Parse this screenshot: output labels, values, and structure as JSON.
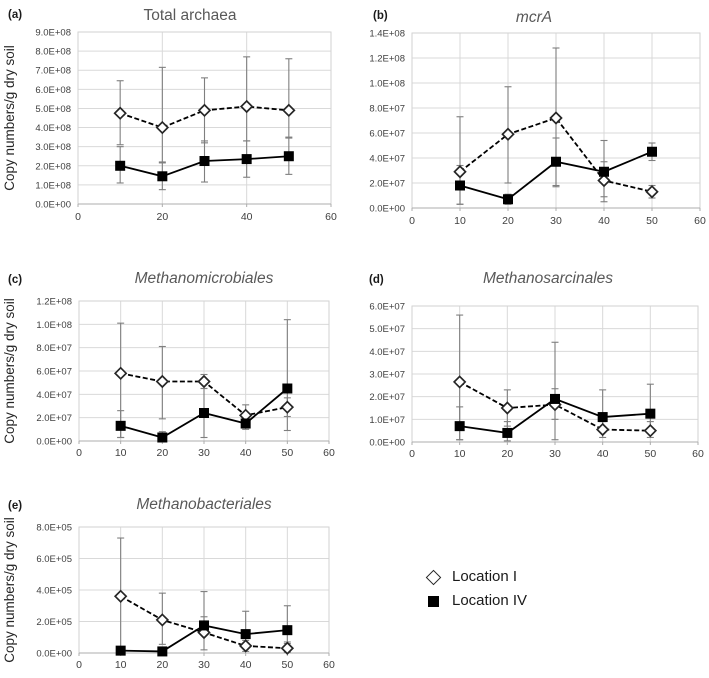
{
  "figure": {
    "y_axis_title": "Copy numbers/g dry soil",
    "legend": {
      "items": [
        {
          "label": "Location I",
          "marker": "diamond"
        },
        {
          "label": "Location IV",
          "marker": "square"
        }
      ]
    },
    "colors": {
      "grid": "#d9d9d9",
      "border": "#d2d2d2",
      "axis": "#acacac",
      "error": "#7f7f7f",
      "line": "#000000",
      "marker_stroke": "#262626",
      "marker_fill_open": "#ffffff",
      "marker_fill_solid": "#000000",
      "title": "#595959",
      "tick": "#404040",
      "panel_label": "#1a1a1a",
      "y_title": "#262626"
    }
  },
  "chart_data": [
    {
      "id": "a",
      "panel_label": "(a)",
      "title": "Total archaea",
      "title_italic": false,
      "type": "line",
      "show_y_axis_title": true,
      "xlim": [
        0,
        60
      ],
      "ylim": [
        0,
        900000000
      ],
      "x_ticks": {
        "values": [
          0,
          20,
          40,
          60
        ],
        "labels": [
          "0",
          "20",
          "40",
          "60"
        ]
      },
      "y_ticks": {
        "values": [
          0,
          100000000,
          200000000,
          300000000,
          400000000,
          500000000,
          600000000,
          700000000,
          800000000,
          900000000
        ],
        "labels": [
          "0.0E+00",
          "1.0E+08",
          "2.0E+08",
          "3.0E+08",
          "4.0E+08",
          "5.0E+08",
          "6.0E+08",
          "7.0E+08",
          "8.0E+08",
          "9.0E+08"
        ]
      },
      "x": [
        10,
        20,
        30,
        40,
        50
      ],
      "series": [
        {
          "name": "Location I",
          "marker": "diamond",
          "line_style": "dashed",
          "values": [
            475000000,
            400000000,
            490000000,
            510000000,
            490000000
          ],
          "err_low": [
            310000000,
            220000000,
            320000000,
            330000000,
            350000000
          ],
          "err_high": [
            645000000,
            715000000,
            660000000,
            770000000,
            760000000
          ]
        },
        {
          "name": "Location IV",
          "marker": "square",
          "line_style": "solid",
          "values": [
            200000000,
            145000000,
            225000000,
            235000000,
            250000000
          ],
          "err_low": [
            110000000,
            75000000,
            115000000,
            140000000,
            155000000
          ],
          "err_high": [
            300000000,
            215000000,
            330000000,
            330000000,
            345000000
          ]
        }
      ]
    },
    {
      "id": "b",
      "panel_label": "(b)",
      "title": "mcrA",
      "title_italic": true,
      "type": "line",
      "show_y_axis_title": false,
      "xlim": [
        0,
        60
      ],
      "ylim": [
        0,
        140000000
      ],
      "x_ticks": {
        "values": [
          0,
          10,
          20,
          30,
          40,
          50,
          60
        ],
        "labels": [
          "0",
          "10",
          "20",
          "30",
          "40",
          "50",
          "60"
        ]
      },
      "y_ticks": {
        "values": [
          0,
          20000000,
          40000000,
          60000000,
          80000000,
          100000000,
          120000000,
          140000000
        ],
        "labels": [
          "0.0E+00",
          "2.0E+07",
          "4.0E+07",
          "6.0E+07",
          "8.0E+07",
          "1.0E+08",
          "1.2E+08",
          "1.4E+08"
        ]
      },
      "x": [
        10,
        20,
        30,
        40,
        50
      ],
      "series": [
        {
          "name": "Location I",
          "marker": "diamond",
          "line_style": "dashed",
          "values": [
            29000000,
            59000000,
            72000000,
            22000000,
            13000000
          ],
          "err_low": [
            3000000,
            20000000,
            17000000,
            5000000,
            8000000
          ],
          "err_high": [
            73000000,
            97000000,
            128000000,
            37000000,
            18000000
          ]
        },
        {
          "name": "Location IV",
          "marker": "square",
          "line_style": "solid",
          "values": [
            18000000,
            7000000,
            37000000,
            29000000,
            45000000
          ],
          "err_low": [
            3000000,
            3000000,
            18000000,
            9000000,
            38000000
          ],
          "err_high": [
            34000000,
            11000000,
            56000000,
            54000000,
            52000000
          ]
        }
      ]
    },
    {
      "id": "c",
      "panel_label": "(c)",
      "title": "Methanomicrobiales",
      "title_italic": true,
      "type": "line",
      "show_y_axis_title": true,
      "xlim": [
        0,
        60
      ],
      "ylim": [
        0,
        120000000
      ],
      "x_ticks": {
        "values": [
          0,
          10,
          20,
          30,
          40,
          50,
          60
        ],
        "labels": [
          "0",
          "10",
          "20",
          "30",
          "40",
          "50",
          "60"
        ]
      },
      "y_ticks": {
        "values": [
          0,
          20000000,
          40000000,
          60000000,
          80000000,
          100000000,
          120000000
        ],
        "labels": [
          "0.0E+00",
          "2.0E+07",
          "4.0E+07",
          "6.0E+07",
          "8.0E+07",
          "1.0E+08",
          "1.2E+08"
        ]
      },
      "x": [
        10,
        20,
        30,
        40,
        50
      ],
      "series": [
        {
          "name": "Location I",
          "marker": "diamond",
          "line_style": "dashed",
          "values": [
            58000000,
            51000000,
            51000000,
            22000000,
            29000000
          ],
          "err_low": [
            3000000,
            19000000,
            45000000,
            15000000,
            21000000
          ],
          "err_high": [
            101000000,
            81000000,
            57000000,
            31000000,
            37000000
          ]
        },
        {
          "name": "Location IV",
          "marker": "square",
          "line_style": "solid",
          "values": [
            13000000,
            3000000,
            24000000,
            15000000,
            45000000
          ],
          "err_low": [
            3000000,
            1000000,
            3000000,
            10000000,
            9000000
          ],
          "err_high": [
            26000000,
            8000000,
            45000000,
            20000000,
            104000000
          ]
        }
      ]
    },
    {
      "id": "d",
      "panel_label": "(d)",
      "title": "Methanosarcinales",
      "title_italic": true,
      "type": "line",
      "show_y_axis_title": false,
      "xlim": [
        0,
        60
      ],
      "ylim": [
        0,
        60000000
      ],
      "x_ticks": {
        "values": [
          0,
          10,
          20,
          30,
          40,
          50,
          60
        ],
        "labels": [
          "0",
          "10",
          "20",
          "30",
          "40",
          "50",
          "60"
        ]
      },
      "y_ticks": {
        "values": [
          0,
          10000000,
          20000000,
          30000000,
          40000000,
          50000000,
          60000000
        ],
        "labels": [
          "0.0E+00",
          "1.0E+07",
          "2.0E+07",
          "3.0E+07",
          "4.0E+07",
          "5.0E+07",
          "6.0E+07"
        ]
      },
      "x": [
        10,
        20,
        30,
        40,
        50
      ],
      "series": [
        {
          "name": "Location I",
          "marker": "diamond",
          "line_style": "dashed",
          "values": [
            26500000,
            15000000,
            16500000,
            5500000,
            5000000
          ],
          "err_low": [
            1000000,
            7000000,
            1000000,
            2000000,
            2000000
          ],
          "err_high": [
            56000000,
            23000000,
            44000000,
            9000000,
            9000000
          ]
        },
        {
          "name": "Location IV",
          "marker": "square",
          "line_style": "solid",
          "values": [
            7000000,
            4000000,
            19000000,
            11000000,
            12500000
          ],
          "err_low": [
            1000000,
            500000,
            10000000,
            5000000,
            5000000
          ],
          "err_high": [
            15500000,
            9000000,
            23500000,
            23000000,
            25500000
          ]
        }
      ]
    },
    {
      "id": "e",
      "panel_label": "(e)",
      "title": "Methanobacteriales",
      "title_italic": true,
      "type": "line",
      "show_y_axis_title": true,
      "xlim": [
        0,
        60
      ],
      "ylim": [
        0,
        800000
      ],
      "x_ticks": {
        "values": [
          0,
          10,
          20,
          30,
          40,
          50,
          60
        ],
        "labels": [
          "0",
          "10",
          "20",
          "30",
          "40",
          "50",
          "60"
        ]
      },
      "y_ticks": {
        "values": [
          0,
          200000,
          400000,
          600000,
          800000
        ],
        "labels": [
          "0.0E+00",
          "2.0E+05",
          "4.0E+05",
          "6.0E+05",
          "8.0E+05"
        ]
      },
      "x": [
        10,
        20,
        30,
        40,
        50
      ],
      "series": [
        {
          "name": "Location I",
          "marker": "diamond",
          "line_style": "dashed",
          "values": [
            360000,
            210000,
            130000,
            45000,
            30000
          ],
          "err_low": [
            5000,
            55000,
            20000,
            10000,
            5000
          ],
          "err_high": [
            730000,
            380000,
            390000,
            80000,
            60000
          ]
        },
        {
          "name": "Location IV",
          "marker": "square",
          "line_style": "solid",
          "values": [
            15000,
            10000,
            175000,
            120000,
            145000
          ],
          "err_low": [
            5000,
            5000,
            130000,
            60000,
            70000
          ],
          "err_high": [
            35000,
            30000,
            230000,
            265000,
            300000
          ]
        }
      ]
    }
  ]
}
